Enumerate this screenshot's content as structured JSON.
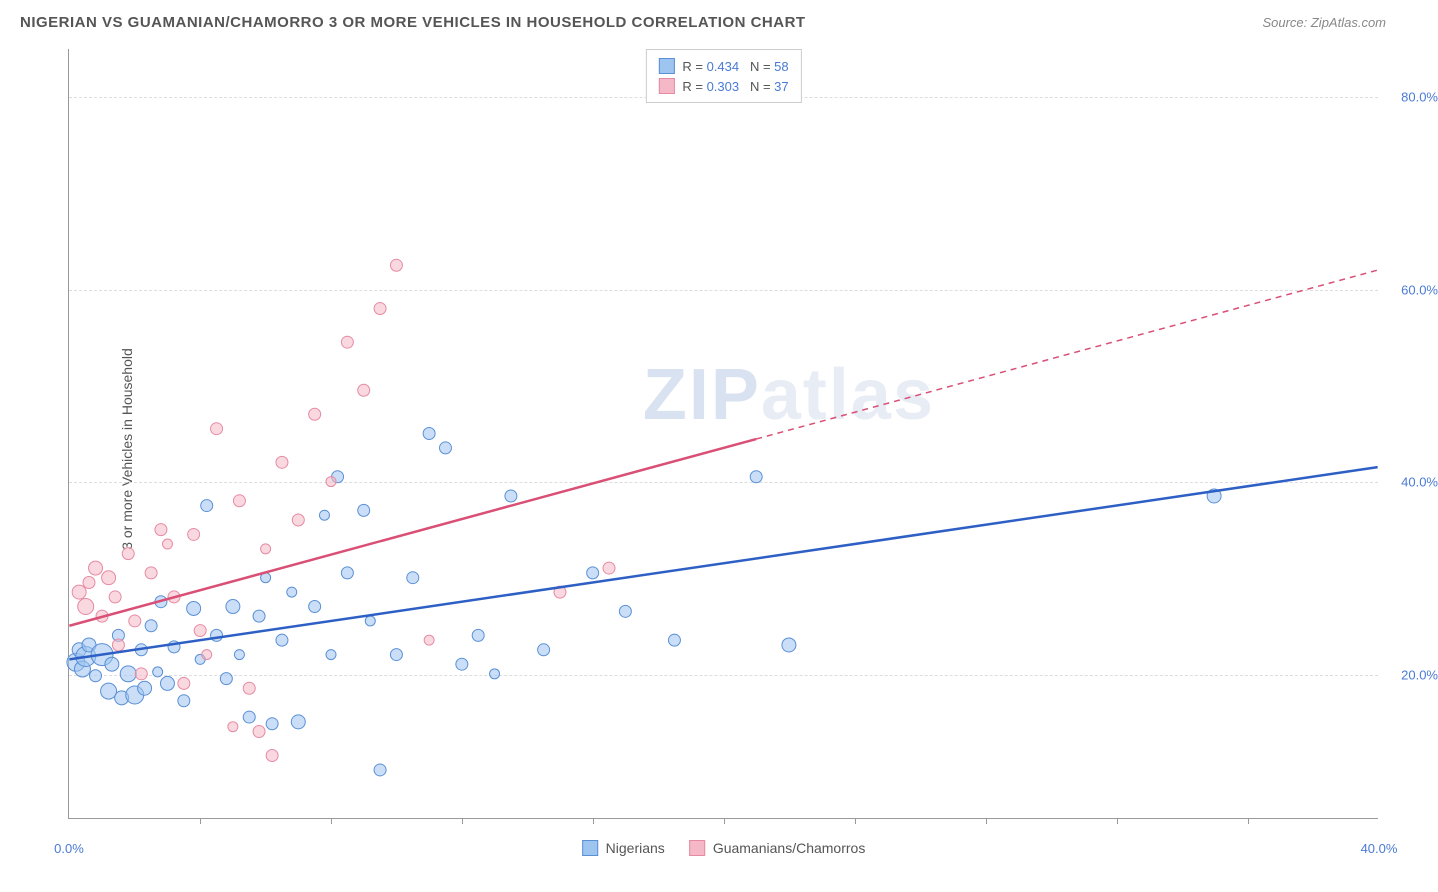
{
  "title": "NIGERIAN VS GUAMANIAN/CHAMORRO 3 OR MORE VEHICLES IN HOUSEHOLD CORRELATION CHART",
  "source": "Source: ZipAtlas.com",
  "watermark": {
    "bold": "ZIP",
    "light": "atlas"
  },
  "y_axis": {
    "label": "3 or more Vehicles in Household",
    "ticks": [
      20.0,
      40.0,
      60.0,
      80.0
    ],
    "tick_format": "%.1f%%",
    "min": 5.0,
    "max": 85.0
  },
  "x_axis": {
    "ticks": [
      0.0,
      40.0
    ],
    "tick_format": "%.1f%%",
    "minor_ticks": [
      4,
      8,
      12,
      16,
      20,
      24,
      28,
      32,
      36
    ],
    "min": 0.0,
    "max": 40.0
  },
  "colors": {
    "grid": "#dddddd",
    "axis_label": "#4a7bd4",
    "series1_fill": "#9ec4f0",
    "series1_stroke": "#5a8fd6",
    "series1_line": "#2d5fc4",
    "series2_fill": "#f5b8c6",
    "series2_stroke": "#e68aa3",
    "series2_line": "#d94f75"
  },
  "series": [
    {
      "name": "Nigerians",
      "r": "0.434",
      "n": "58",
      "color_fill": "#9ec4f0",
      "color_stroke": "#5a8fd6",
      "trend_color": "#2d5fc4",
      "trend": {
        "x1": 0,
        "y1": 21.5,
        "x2": 40,
        "y2": 41.5
      },
      "marker_opacity": 0.55,
      "points": [
        {
          "x": 0.2,
          "y": 21.2,
          "r": 9
        },
        {
          "x": 0.3,
          "y": 22.5,
          "r": 7
        },
        {
          "x": 0.4,
          "y": 20.5,
          "r": 8
        },
        {
          "x": 0.5,
          "y": 21.8,
          "r": 10
        },
        {
          "x": 0.6,
          "y": 23.0,
          "r": 7
        },
        {
          "x": 0.8,
          "y": 19.8,
          "r": 6
        },
        {
          "x": 1.0,
          "y": 22.0,
          "r": 11
        },
        {
          "x": 1.2,
          "y": 18.2,
          "r": 8
        },
        {
          "x": 1.3,
          "y": 21.0,
          "r": 7
        },
        {
          "x": 1.5,
          "y": 24.0,
          "r": 6
        },
        {
          "x": 1.6,
          "y": 17.5,
          "r": 7
        },
        {
          "x": 1.8,
          "y": 20.0,
          "r": 8
        },
        {
          "x": 2.0,
          "y": 17.8,
          "r": 9
        },
        {
          "x": 2.2,
          "y": 22.5,
          "r": 6
        },
        {
          "x": 2.3,
          "y": 18.5,
          "r": 7
        },
        {
          "x": 2.5,
          "y": 25.0,
          "r": 6
        },
        {
          "x": 2.7,
          "y": 20.2,
          "r": 5
        },
        {
          "x": 2.8,
          "y": 27.5,
          "r": 6
        },
        {
          "x": 3.0,
          "y": 19.0,
          "r": 7
        },
        {
          "x": 3.2,
          "y": 22.8,
          "r": 6
        },
        {
          "x": 3.5,
          "y": 17.2,
          "r": 6
        },
        {
          "x": 3.8,
          "y": 26.8,
          "r": 7
        },
        {
          "x": 4.0,
          "y": 21.5,
          "r": 5
        },
        {
          "x": 4.2,
          "y": 37.5,
          "r": 6
        },
        {
          "x": 4.5,
          "y": 24.0,
          "r": 6
        },
        {
          "x": 4.8,
          "y": 19.5,
          "r": 6
        },
        {
          "x": 5.0,
          "y": 27.0,
          "r": 7
        },
        {
          "x": 5.2,
          "y": 22.0,
          "r": 5
        },
        {
          "x": 5.5,
          "y": 15.5,
          "r": 6
        },
        {
          "x": 5.8,
          "y": 26.0,
          "r": 6
        },
        {
          "x": 6.0,
          "y": 30.0,
          "r": 5
        },
        {
          "x": 6.2,
          "y": 14.8,
          "r": 6
        },
        {
          "x": 6.5,
          "y": 23.5,
          "r": 6
        },
        {
          "x": 6.8,
          "y": 28.5,
          "r": 5
        },
        {
          "x": 7.0,
          "y": 15.0,
          "r": 7
        },
        {
          "x": 7.5,
          "y": 27.0,
          "r": 6
        },
        {
          "x": 7.8,
          "y": 36.5,
          "r": 5
        },
        {
          "x": 8.0,
          "y": 22.0,
          "r": 5
        },
        {
          "x": 8.2,
          "y": 40.5,
          "r": 6
        },
        {
          "x": 8.5,
          "y": 30.5,
          "r": 6
        },
        {
          "x": 9.0,
          "y": 37.0,
          "r": 6
        },
        {
          "x": 9.2,
          "y": 25.5,
          "r": 5
        },
        {
          "x": 9.5,
          "y": 10.0,
          "r": 6
        },
        {
          "x": 10.0,
          "y": 22.0,
          "r": 6
        },
        {
          "x": 10.5,
          "y": 30.0,
          "r": 6
        },
        {
          "x": 11.0,
          "y": 45.0,
          "r": 6
        },
        {
          "x": 11.5,
          "y": 43.5,
          "r": 6
        },
        {
          "x": 12.0,
          "y": 21.0,
          "r": 6
        },
        {
          "x": 12.5,
          "y": 24.0,
          "r": 6
        },
        {
          "x": 13.0,
          "y": 20.0,
          "r": 5
        },
        {
          "x": 13.5,
          "y": 38.5,
          "r": 6
        },
        {
          "x": 14.5,
          "y": 22.5,
          "r": 6
        },
        {
          "x": 16.0,
          "y": 30.5,
          "r": 6
        },
        {
          "x": 17.0,
          "y": 26.5,
          "r": 6
        },
        {
          "x": 18.5,
          "y": 23.5,
          "r": 6
        },
        {
          "x": 21.0,
          "y": 40.5,
          "r": 6
        },
        {
          "x": 22.0,
          "y": 23.0,
          "r": 7
        },
        {
          "x": 35.0,
          "y": 38.5,
          "r": 7
        }
      ]
    },
    {
      "name": "Guamanians/Chamorros",
      "r": "0.303",
      "n": "37",
      "color_fill": "#f5b8c6",
      "color_stroke": "#e68aa3",
      "trend_color": "#d94f75",
      "trend": {
        "x1": 0,
        "y1": 25.0,
        "x2": 40,
        "y2": 62.0
      },
      "trend_solid_until_x": 21.0,
      "marker_opacity": 0.55,
      "points": [
        {
          "x": 0.3,
          "y": 28.5,
          "r": 7
        },
        {
          "x": 0.5,
          "y": 27.0,
          "r": 8
        },
        {
          "x": 0.6,
          "y": 29.5,
          "r": 6
        },
        {
          "x": 0.8,
          "y": 31.0,
          "r": 7
        },
        {
          "x": 1.0,
          "y": 26.0,
          "r": 6
        },
        {
          "x": 1.2,
          "y": 30.0,
          "r": 7
        },
        {
          "x": 1.4,
          "y": 28.0,
          "r": 6
        },
        {
          "x": 1.5,
          "y": 23.0,
          "r": 6
        },
        {
          "x": 1.8,
          "y": 32.5,
          "r": 6
        },
        {
          "x": 2.0,
          "y": 25.5,
          "r": 6
        },
        {
          "x": 2.2,
          "y": 20.0,
          "r": 6
        },
        {
          "x": 2.5,
          "y": 30.5,
          "r": 6
        },
        {
          "x": 2.8,
          "y": 35.0,
          "r": 6
        },
        {
          "x": 3.0,
          "y": 33.5,
          "r": 5
        },
        {
          "x": 3.2,
          "y": 28.0,
          "r": 6
        },
        {
          "x": 3.5,
          "y": 19.0,
          "r": 6
        },
        {
          "x": 3.8,
          "y": 34.5,
          "r": 6
        },
        {
          "x": 4.0,
          "y": 24.5,
          "r": 6
        },
        {
          "x": 4.2,
          "y": 22.0,
          "r": 5
        },
        {
          "x": 4.5,
          "y": 45.5,
          "r": 6
        },
        {
          "x": 5.0,
          "y": 14.5,
          "r": 5
        },
        {
          "x": 5.2,
          "y": 38.0,
          "r": 6
        },
        {
          "x": 5.5,
          "y": 18.5,
          "r": 6
        },
        {
          "x": 5.8,
          "y": 14.0,
          "r": 6
        },
        {
          "x": 6.0,
          "y": 33.0,
          "r": 5
        },
        {
          "x": 6.2,
          "y": 11.5,
          "r": 6
        },
        {
          "x": 6.5,
          "y": 42.0,
          "r": 6
        },
        {
          "x": 7.0,
          "y": 36.0,
          "r": 6
        },
        {
          "x": 7.5,
          "y": 47.0,
          "r": 6
        },
        {
          "x": 8.0,
          "y": 40.0,
          "r": 5
        },
        {
          "x": 8.5,
          "y": 54.5,
          "r": 6
        },
        {
          "x": 9.0,
          "y": 49.5,
          "r": 6
        },
        {
          "x": 9.5,
          "y": 58.0,
          "r": 6
        },
        {
          "x": 10.0,
          "y": 62.5,
          "r": 6
        },
        {
          "x": 11.0,
          "y": 23.5,
          "r": 5
        },
        {
          "x": 15.0,
          "y": 28.5,
          "r": 6
        },
        {
          "x": 16.5,
          "y": 31.0,
          "r": 6
        }
      ]
    }
  ]
}
